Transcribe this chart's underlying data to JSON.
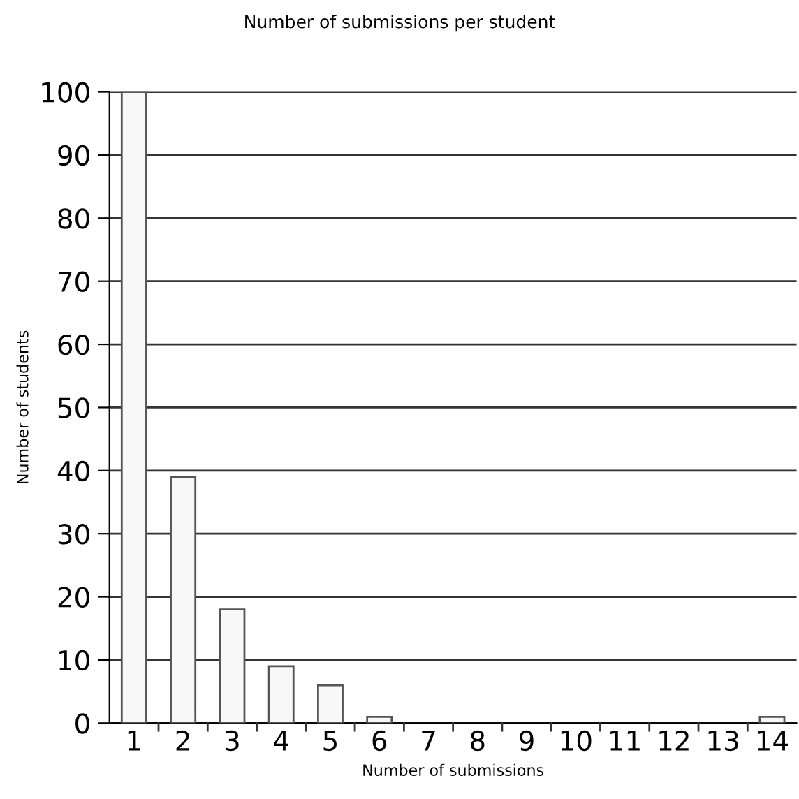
{
  "chart_data": {
    "type": "bar",
    "title": "Number of submissions per student",
    "xlabel": "Number of submissions",
    "ylabel": "Number of students",
    "categories": [
      "1",
      "2",
      "3",
      "4",
      "5",
      "6",
      "7",
      "8",
      "9",
      "10",
      "11",
      "12",
      "13",
      "14"
    ],
    "values": [
      100,
      39,
      18,
      9,
      6,
      1,
      0,
      0,
      0,
      0,
      0,
      0,
      0,
      1
    ],
    "color": "#f8f8f8",
    "ylim": [
      0,
      100
    ],
    "yticks": [
      0,
      10,
      20,
      30,
      40,
      50,
      60,
      70,
      80,
      90,
      100
    ],
    "grid": "y",
    "legend": false
  }
}
